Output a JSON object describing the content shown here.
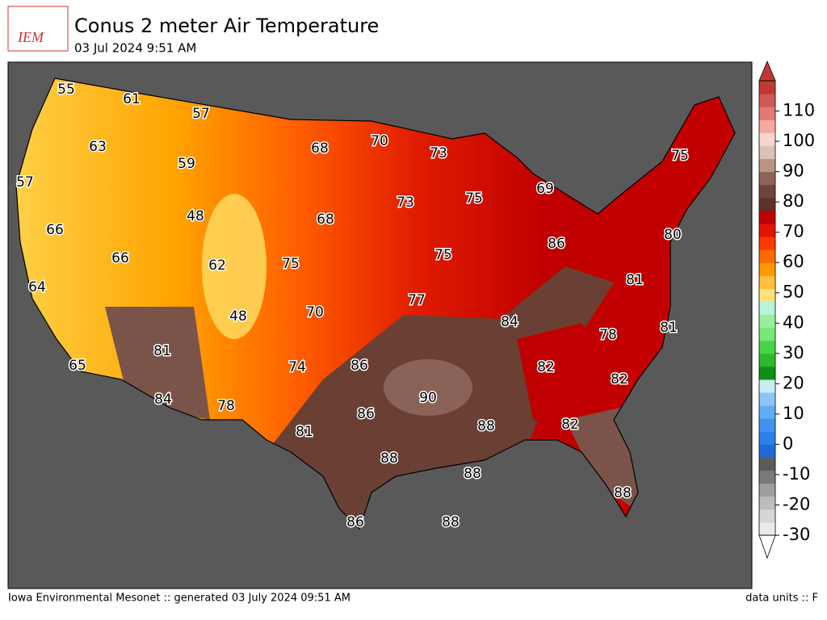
{
  "header": {
    "logo": "IEM",
    "title": "Conus 2 meter Air Temperature",
    "subtitle": "03 Jul 2024 9:51 AM"
  },
  "map": {
    "labels": [
      55,
      61,
      57,
      63,
      68,
      70,
      73,
      75,
      59,
      57,
      69,
      73,
      75,
      48,
      68,
      66,
      86,
      80,
      66,
      62,
      75,
      75,
      64,
      81,
      77,
      70,
      48,
      84,
      81,
      78,
      81,
      86,
      74,
      65,
      82,
      82,
      90,
      84,
      78,
      86,
      88,
      82,
      81,
      88,
      88,
      88,
      86,
      88
    ]
  },
  "colorbar": {
    "range": [
      -30,
      120
    ],
    "ticks": [
      -30,
      -20,
      -10,
      0,
      10,
      20,
      30,
      40,
      50,
      60,
      70,
      80,
      90,
      100,
      110
    ],
    "colors": [
      "#ebebeb",
      "#d6d6d6",
      "#bdbdbd",
      "#9e9e9e",
      "#7a7a7a",
      "#5c5c5c",
      "#1f6ad6",
      "#2a82e6",
      "#3d95ee",
      "#62adf3",
      "#8ac6f7",
      "#c8ecf0",
      "#0f8f1a",
      "#2fb82f",
      "#45d445",
      "#78e878",
      "#98f098",
      "#b8f4d8",
      "#ffe27a",
      "#ffbf3f",
      "#ff9a00",
      "#ff6a00",
      "#ff3800",
      "#e01400",
      "#c00000",
      "#5e3228",
      "#704438",
      "#8c6558",
      "#b89484",
      "#dcc0b4",
      "#f6d6cc",
      "#f2aaa0",
      "#e27a74",
      "#d25858",
      "#c03a34"
    ]
  },
  "footer": {
    "left": "Iowa Environmental Mesonet :: generated 03 July 2024 09:51 AM",
    "right": "data units :: F"
  }
}
